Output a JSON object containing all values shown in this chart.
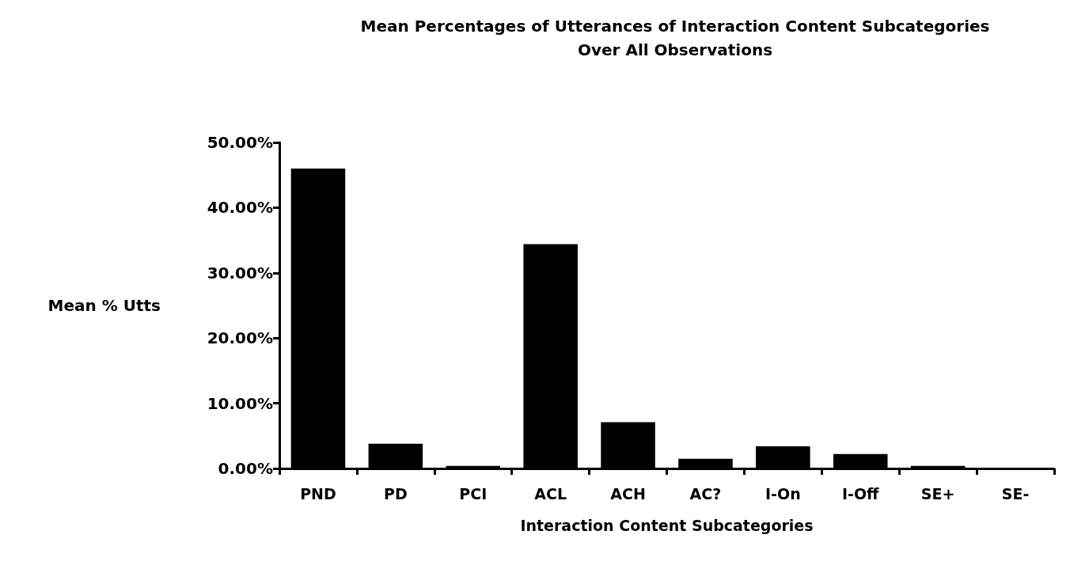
{
  "chart_data": {
    "type": "bar",
    "title": "Mean Percentages of Utterances of Interaction Content Subcategories",
    "subtitle": "Over All Observations",
    "xlabel": "Interaction Content Subcategories",
    "ylabel": "Mean % Utts",
    "categories": [
      "PND",
      "PD",
      "PCI",
      "ACL",
      "ACH",
      "AC?",
      "I-On",
      "I-Off",
      "SE+",
      "SE-"
    ],
    "values": [
      46,
      3.8,
      0.4,
      34.4,
      7.1,
      1.5,
      3.4,
      2.2,
      0.4,
      0
    ],
    "color": "#000000",
    "ylim": [
      0,
      50
    ],
    "yticks": [
      {
        "value": 0,
        "label": "0.00%"
      },
      {
        "value": 10,
        "label": "10.00%"
      },
      {
        "value": 20,
        "label": "20.00%"
      },
      {
        "value": 30,
        "label": "30.00%"
      },
      {
        "value": 40,
        "label": "40.00%"
      },
      {
        "value": 50,
        "label": "50.00%"
      }
    ],
    "grid": false
  }
}
